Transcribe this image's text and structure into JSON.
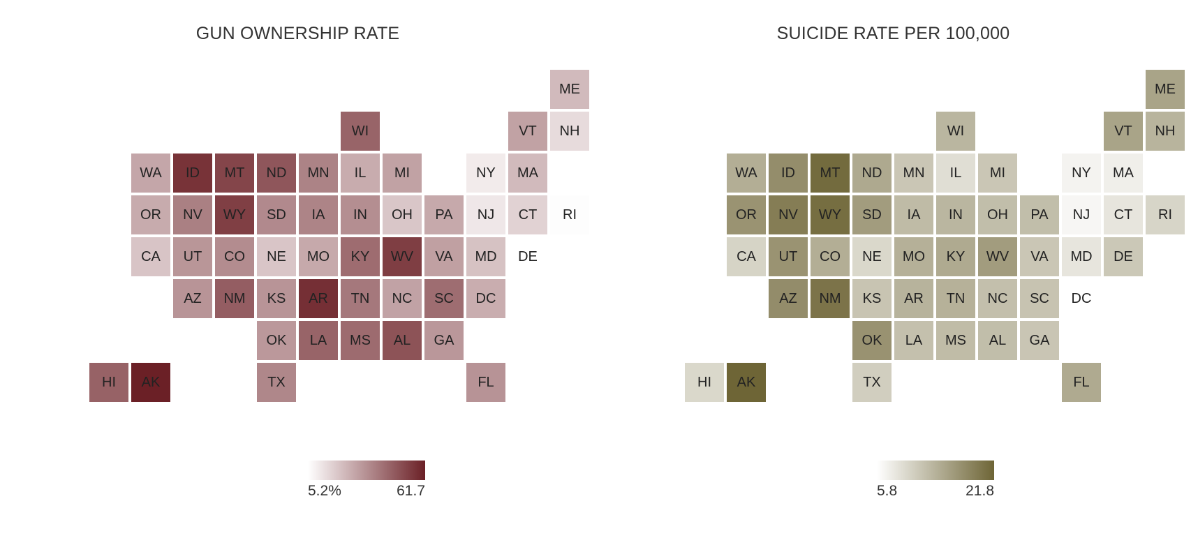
{
  "chart_data": [
    {
      "type": "heatmap",
      "title": "GUN OWNERSHIP RATE",
      "legend": {
        "min_label": "5.2%",
        "max_label": "61.7",
        "low_color": "#ffffff",
        "high_color": "#6b2026"
      },
      "states": [
        {
          "code": "ME",
          "value": 22.6
        },
        {
          "code": "WI",
          "value": 44.4
        },
        {
          "code": "VT",
          "value": 28.8
        },
        {
          "code": "NH",
          "value": 14.4
        },
        {
          "code": "WA",
          "value": 27.7
        },
        {
          "code": "ID",
          "value": 56.9
        },
        {
          "code": "MT",
          "value": 52.3
        },
        {
          "code": "ND",
          "value": 47.9
        },
        {
          "code": "MN",
          "value": 36.7
        },
        {
          "code": "IL",
          "value": 26.2
        },
        {
          "code": "MI",
          "value": 28.8
        },
        {
          "code": "NY",
          "value": 10.3
        },
        {
          "code": "MA",
          "value": 22.6
        },
        {
          "code": "OR",
          "value": 26.6
        },
        {
          "code": "NV",
          "value": 37.5
        },
        {
          "code": "WY",
          "value": 53.8
        },
        {
          "code": "SD",
          "value": 35.0
        },
        {
          "code": "IA",
          "value": 36.4
        },
        {
          "code": "IN",
          "value": 33.8
        },
        {
          "code": "OH",
          "value": 19.6
        },
        {
          "code": "PA",
          "value": 27.1
        },
        {
          "code": "NJ",
          "value": 11.3
        },
        {
          "code": "CT",
          "value": 16.6
        },
        {
          "code": "RI",
          "value": 5.8
        },
        {
          "code": "CA",
          "value": 20.1
        },
        {
          "code": "UT",
          "value": 31.9
        },
        {
          "code": "CO",
          "value": 34.3
        },
        {
          "code": "NE",
          "value": 19.8
        },
        {
          "code": "MO",
          "value": 27.1
        },
        {
          "code": "KY",
          "value": 42.4
        },
        {
          "code": "WV",
          "value": 54.2
        },
        {
          "code": "VA",
          "value": 29.3
        },
        {
          "code": "MD",
          "value": 20.7
        },
        {
          "code": "DE",
          "value": 5.2
        },
        {
          "code": "AZ",
          "value": 32.3
        },
        {
          "code": "NM",
          "value": 46.2
        },
        {
          "code": "KS",
          "value": 32.2
        },
        {
          "code": "AR",
          "value": 57.9
        },
        {
          "code": "TN",
          "value": 39.4
        },
        {
          "code": "NC",
          "value": 28.7
        },
        {
          "code": "SC",
          "value": 42.3
        },
        {
          "code": "DC",
          "value": 25.9
        },
        {
          "code": "OK",
          "value": 31.2
        },
        {
          "code": "LA",
          "value": 44.5
        },
        {
          "code": "MS",
          "value": 42.8
        },
        {
          "code": "AL",
          "value": 48.9
        },
        {
          "code": "GA",
          "value": 31.6
        },
        {
          "code": "HI",
          "value": 45.0
        },
        {
          "code": "AK",
          "value": 61.7
        },
        {
          "code": "TX",
          "value": 35.7
        },
        {
          "code": "FL",
          "value": 32.5
        }
      ]
    },
    {
      "type": "heatmap",
      "title": "SUICIDE RATE PER 100,000",
      "legend": {
        "min_label": "5.8",
        "max_label": "21.8",
        "low_color": "#ffffff",
        "high_color": "#6e6536"
      },
      "states": [
        {
          "code": "ME",
          "value": 15.3
        },
        {
          "code": "WI",
          "value": 13.4
        },
        {
          "code": "VT",
          "value": 15.3
        },
        {
          "code": "NH",
          "value": 13.6
        },
        {
          "code": "WA",
          "value": 14.2
        },
        {
          "code": "ID",
          "value": 17.6
        },
        {
          "code": "MT",
          "value": 21.2
        },
        {
          "code": "ND",
          "value": 14.7
        },
        {
          "code": "MN",
          "value": 11.7
        },
        {
          "code": "IL",
          "value": 9.2
        },
        {
          "code": "MI",
          "value": 11.7
        },
        {
          "code": "NY",
          "value": 7.0
        },
        {
          "code": "MA",
          "value": 7.5
        },
        {
          "code": "OR",
          "value": 17.0
        },
        {
          "code": "NV",
          "value": 19.3
        },
        {
          "code": "WY",
          "value": 20.9
        },
        {
          "code": "SD",
          "value": 16.1
        },
        {
          "code": "IA",
          "value": 12.9
        },
        {
          "code": "IN",
          "value": 13.4
        },
        {
          "code": "OH",
          "value": 12.6
        },
        {
          "code": "PA",
          "value": 12.6
        },
        {
          "code": "NJ",
          "value": 6.7
        },
        {
          "code": "CT",
          "value": 8.5
        },
        {
          "code": "RI",
          "value": 10.2
        },
        {
          "code": "CA",
          "value": 10.3
        },
        {
          "code": "UT",
          "value": 17.0
        },
        {
          "code": "CO",
          "value": 14.2
        },
        {
          "code": "NE",
          "value": 9.9
        },
        {
          "code": "MO",
          "value": 14.0
        },
        {
          "code": "KY",
          "value": 14.6
        },
        {
          "code": "WV",
          "value": 16.1
        },
        {
          "code": "VA",
          "value": 11.7
        },
        {
          "code": "MD",
          "value": 8.5
        },
        {
          "code": "DE",
          "value": 11.5
        },
        {
          "code": "AZ",
          "value": 17.7
        },
        {
          "code": "NM",
          "value": 20.3
        },
        {
          "code": "KS",
          "value": 11.9
        },
        {
          "code": "AR",
          "value": 13.7
        },
        {
          "code": "TN",
          "value": 13.9
        },
        {
          "code": "NC",
          "value": 12.4
        },
        {
          "code": "SC",
          "value": 12.0
        },
        {
          "code": "DC",
          "value": 5.8
        },
        {
          "code": "OK",
          "value": 17.1
        },
        {
          "code": "LA",
          "value": 12.3
        },
        {
          "code": "MS",
          "value": 12.8
        },
        {
          "code": "AL",
          "value": 12.6
        },
        {
          "code": "GA",
          "value": 11.8
        },
        {
          "code": "HI",
          "value": 9.9
        },
        {
          "code": "AK",
          "value": 21.8
        },
        {
          "code": "TX",
          "value": 10.9
        },
        {
          "code": "FL",
          "value": 14.6
        }
      ]
    }
  ]
}
